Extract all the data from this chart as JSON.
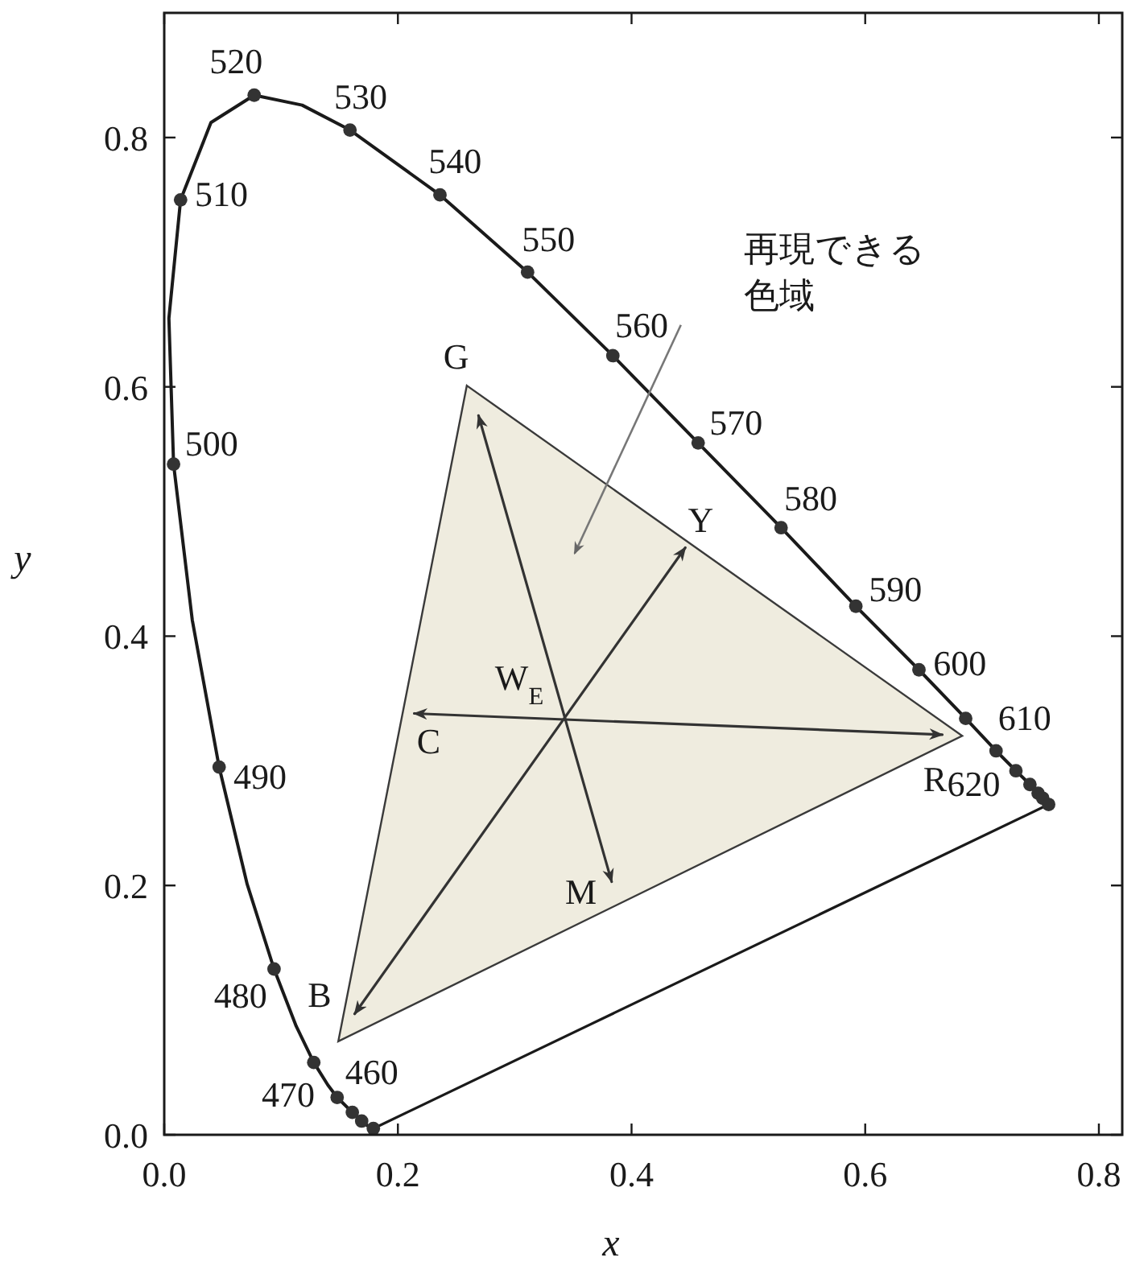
{
  "chart_data": {
    "type": "line",
    "xlabel": "x",
    "ylabel": "y",
    "xlim": [
      0,
      0.82
    ],
    "ylim": [
      0,
      0.9
    ],
    "xticks": [
      {
        "value": 0,
        "label": "0.0"
      },
      0.2,
      0.4,
      0.6,
      0.8
    ],
    "yticks": [
      {
        "value": 0,
        "label": "0.0"
      },
      0.2,
      0.4,
      0.6,
      0.8
    ],
    "grid": false,
    "series": [
      {
        "type": "area",
        "color": "#efecdf",
        "x": [
          0.259,
          0.683,
          0.149,
          0.259
        ],
        "values": [
          0.601,
          0.32,
          0.075,
          0.601
        ]
      },
      {
        "color": "#1a1a1a",
        "x": [
          0.179,
          0.177,
          0.169,
          0.161,
          0.148,
          0.14,
          0.128,
          0.113,
          0.094,
          0.071,
          0.047,
          0.024,
          0.008,
          0.004,
          0.014,
          0.04,
          0.077,
          0.118,
          0.159,
          0.236,
          0.311,
          0.384,
          0.457,
          0.528,
          0.592,
          0.646,
          0.686,
          0.712,
          0.729,
          0.741,
          0.748,
          0.752,
          0.757
        ],
        "values": [
          0.005,
          0.005,
          0.011,
          0.018,
          0.03,
          0.04,
          0.058,
          0.087,
          0.133,
          0.201,
          0.295,
          0.413,
          0.538,
          0.655,
          0.75,
          0.812,
          0.834,
          0.826,
          0.806,
          0.754,
          0.692,
          0.625,
          0.555,
          0.487,
          0.424,
          0.373,
          0.334,
          0.308,
          0.292,
          0.281,
          0.274,
          0.27,
          0.265
        ]
      },
      {
        "type": "line",
        "color": "#1a1a1a",
        "x": [
          0.757,
          0.179
        ],
        "values": [
          0.265,
          0.005
        ]
      },
      {
        "type": "scatter",
        "color": "#333333",
        "marker": "circle",
        "x": [
          0.179,
          0.169,
          0.161,
          0.148,
          0.128,
          0.094,
          0.047,
          0.008,
          0.014,
          0.077,
          0.159,
          0.236,
          0.311,
          0.384,
          0.457,
          0.528,
          0.592,
          0.646,
          0.686,
          0.712,
          0.729,
          0.741,
          0.748,
          0.752,
          0.757
        ],
        "values": [
          0.005,
          0.011,
          0.018,
          0.03,
          0.058,
          0.133,
          0.295,
          0.538,
          0.75,
          0.834,
          0.806,
          0.754,
          0.692,
          0.625,
          0.555,
          0.487,
          0.424,
          0.373,
          0.334,
          0.308,
          0.292,
          0.281,
          0.274,
          0.27,
          0.265
        ]
      },
      {
        "type": "line",
        "color": "#333333",
        "x": [
          0.269,
          0.383
        ],
        "values": [
          0.577,
          0.203
        ]
      },
      {
        "type": "line",
        "color": "#333333",
        "x": [
          0.214,
          0.666
        ],
        "values": [
          0.338,
          0.321
        ]
      },
      {
        "type": "line",
        "color": "#333333",
        "x": [
          0.163,
          0.446
        ],
        "values": [
          0.097,
          0.471
        ]
      }
    ],
    "annotations": [
      {
        "text": "520",
        "x": 0.077,
        "y": 0.834
      },
      {
        "text": "530",
        "x": 0.159,
        "y": 0.806
      },
      {
        "text": "540",
        "x": 0.236,
        "y": 0.754
      },
      {
        "text": "550",
        "x": 0.311,
        "y": 0.692
      },
      {
        "text": "560",
        "x": 0.384,
        "y": 0.625
      },
      {
        "text": "570",
        "x": 0.457,
        "y": 0.555
      },
      {
        "text": "580",
        "x": 0.528,
        "y": 0.487
      },
      {
        "text": "590",
        "x": 0.592,
        "y": 0.424
      },
      {
        "text": "600",
        "x": 0.646,
        "y": 0.373
      },
      {
        "text": "610",
        "x": 0.686,
        "y": 0.334
      },
      {
        "text": "620",
        "x": 0.712,
        "y": 0.308
      },
      {
        "text": "510",
        "x": 0.014,
        "y": 0.75
      },
      {
        "text": "500",
        "x": 0.008,
        "y": 0.538
      },
      {
        "text": "490",
        "x": 0.047,
        "y": 0.295
      },
      {
        "text": "480",
        "x": 0.094,
        "y": 0.133
      },
      {
        "text": "470",
        "x": 0.128,
        "y": 0.058
      },
      {
        "text": "460",
        "x": 0.148,
        "y": 0.03
      },
      {
        "text": "G",
        "x": 0.259,
        "y": 0.601
      },
      {
        "text": "Y",
        "x": 0.446,
        "y": 0.471
      },
      {
        "text": "C",
        "x": 0.214,
        "y": 0.338
      },
      {
        "text": "W$_{E}$",
        "x": 0.34,
        "y": 0.333
      },
      {
        "text": "R",
        "x": 0.683,
        "y": 0.32
      },
      {
        "text": "M",
        "x": 0.383,
        "y": 0.203
      },
      {
        "text": "B",
        "x": 0.149,
        "y": 0.075
      },
      "再現できる色域"
    ]
  }
}
